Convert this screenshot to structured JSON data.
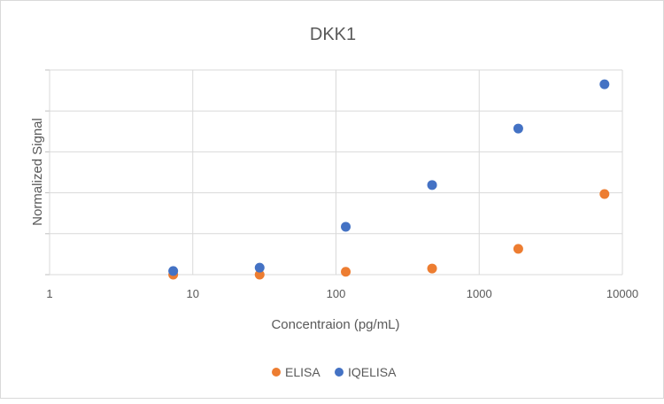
{
  "chart_data": {
    "type": "scatter",
    "title": "DKK1",
    "xlabel": "Concentraion (pg/mL)",
    "ylabel": "Normalized Signal",
    "x_scale": "log",
    "xlim": [
      1,
      10000
    ],
    "x_ticks": [
      "1",
      "10",
      "100",
      "1000",
      "10000"
    ],
    "ylim": [
      0,
      5
    ],
    "y_gridlines": 5,
    "y_tick_labels_shown": false,
    "grid": true,
    "legend": "bottom",
    "series": [
      {
        "name": "ELISA",
        "color": "#ED7D31",
        "x": [
          7.3,
          29.3,
          117,
          469,
          1875,
          7500
        ],
        "y": [
          0.0,
          0.0,
          0.07,
          0.15,
          0.63,
          1.97
        ]
      },
      {
        "name": "IQELISA",
        "color": "#4472C4",
        "x": [
          7.3,
          29.3,
          117,
          469,
          1875,
          7500
        ],
        "y": [
          0.09,
          0.17,
          1.17,
          2.19,
          3.57,
          4.65
        ]
      }
    ]
  }
}
